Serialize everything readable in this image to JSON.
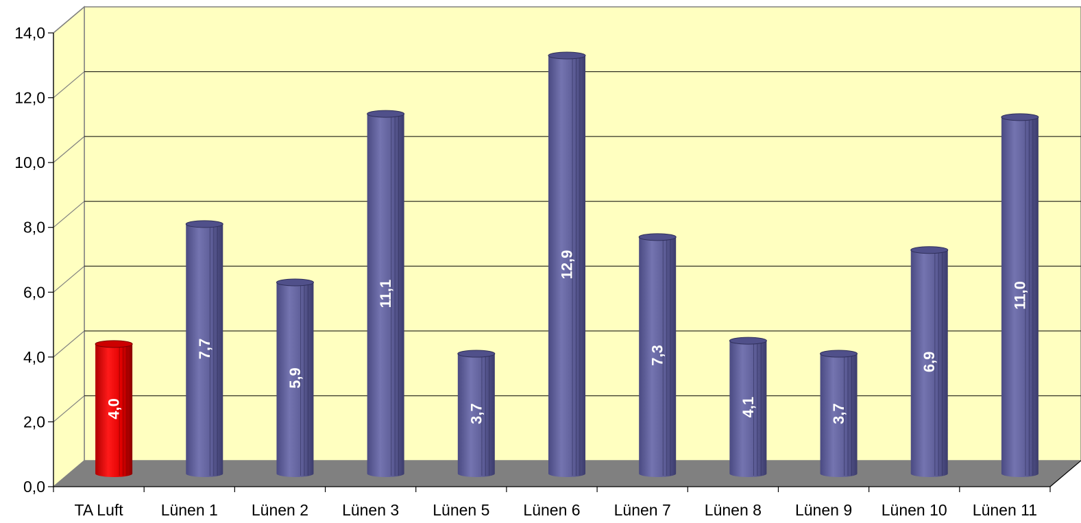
{
  "chart_data": {
    "type": "bar",
    "title": "",
    "xlabel": "",
    "ylabel": "",
    "ylim": [
      0,
      14
    ],
    "y_ticks": [
      "0,0",
      "2,0",
      "4,0",
      "6,0",
      "8,0",
      "10,0",
      "12,0",
      "14,0"
    ],
    "grid": true,
    "legend": "none",
    "categories": [
      "TA Luft",
      "Lünen 1",
      "Lünen 2",
      "Lünen 3",
      "Lünen 5",
      "Lünen 6",
      "Lünen 7",
      "Lünen 8",
      "Lünen 9",
      "Lünen 10",
      "Lünen 11"
    ],
    "values": [
      4.0,
      7.7,
      5.9,
      11.1,
      3.7,
      12.9,
      7.3,
      4.1,
      3.7,
      6.9,
      11.0
    ],
    "data_labels": [
      "4,0",
      "7,7",
      "5,9",
      "11,1",
      "3,7",
      "12,9",
      "7,3",
      "4,1",
      "3,7",
      "6,9",
      "11,0"
    ],
    "colors": {
      "wall": "#ffffc0",
      "floor": "#808080",
      "reference_bar": "#ff0000",
      "bar": "#6b6ba6"
    }
  }
}
